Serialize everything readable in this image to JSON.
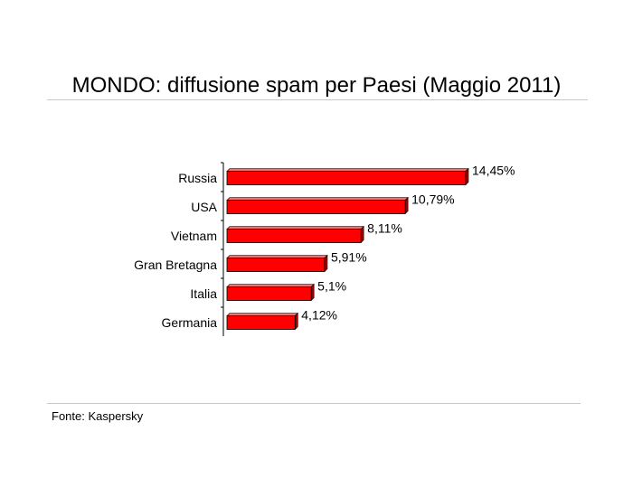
{
  "chart_data": {
    "type": "bar",
    "orientation": "horizontal",
    "title": "MONDO: diffusione spam per Paesi (Maggio 2011)",
    "categories": [
      "Russia",
      "USA",
      "Vietnam",
      "Gran Bretagna",
      "Italia",
      "Germania"
    ],
    "values": [
      14.45,
      10.79,
      8.11,
      5.91,
      5.1,
      4.12
    ],
    "value_labels": [
      "14,45%",
      "10,79%",
      "8,11%",
      "5,91%",
      "5,1%",
      "4,12%"
    ],
    "unit": "%",
    "xlim": [
      0,
      14.45
    ],
    "grid": false,
    "legend": "none",
    "bar_color": "#ff0000",
    "bar_top_color": "#ff6a6a",
    "bar_side_color": "#a00000",
    "source": "Fonte: Kaspersky"
  }
}
